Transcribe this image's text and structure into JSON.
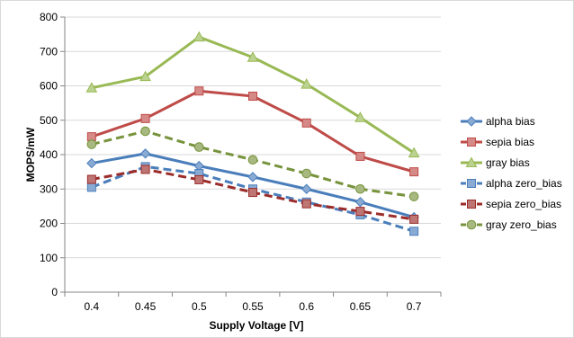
{
  "chart_data": {
    "type": "line",
    "title": "",
    "xlabel": "Supply Voltage [V]",
    "ylabel": "MOPS/mW",
    "categories": [
      "0.4",
      "0.45",
      "0.5",
      "0.55",
      "0.6",
      "0.65",
      "0.7"
    ],
    "ylim": [
      0,
      800
    ],
    "yticks": [
      "0",
      "100",
      "200",
      "300",
      "400",
      "500",
      "600",
      "700",
      "800"
    ],
    "grid": true,
    "legend_position": "right",
    "series": [
      {
        "name": "alpha bias",
        "values": [
          375,
          403,
          367,
          335,
          300,
          262,
          218
        ],
        "color": "#4a7ebb",
        "marker": "diamond",
        "dashed": false
      },
      {
        "name": "sepia bias",
        "values": [
          452,
          505,
          585,
          570,
          492,
          395,
          350
        ],
        "color": "#be4b48",
        "marker": "square",
        "dashed": false
      },
      {
        "name": "gray bias",
        "values": [
          594,
          627,
          742,
          683,
          605,
          508,
          405
        ],
        "color": "#98b954",
        "marker": "triangle",
        "dashed": false
      },
      {
        "name": "alpha zero_bias",
        "values": [
          305,
          365,
          345,
          300,
          262,
          225,
          177
        ],
        "color": "#4a7ebb",
        "marker": "square",
        "dashed": true
      },
      {
        "name": "sepia zero_bias",
        "values": [
          328,
          357,
          327,
          290,
          257,
          235,
          212
        ],
        "color": "#9b2c2a",
        "marker": "square",
        "dashed": true
      },
      {
        "name": "gray zero_bias",
        "values": [
          430,
          468,
          422,
          385,
          345,
          300,
          278
        ],
        "color": "#77933c",
        "marker": "circle",
        "dashed": true
      }
    ]
  }
}
